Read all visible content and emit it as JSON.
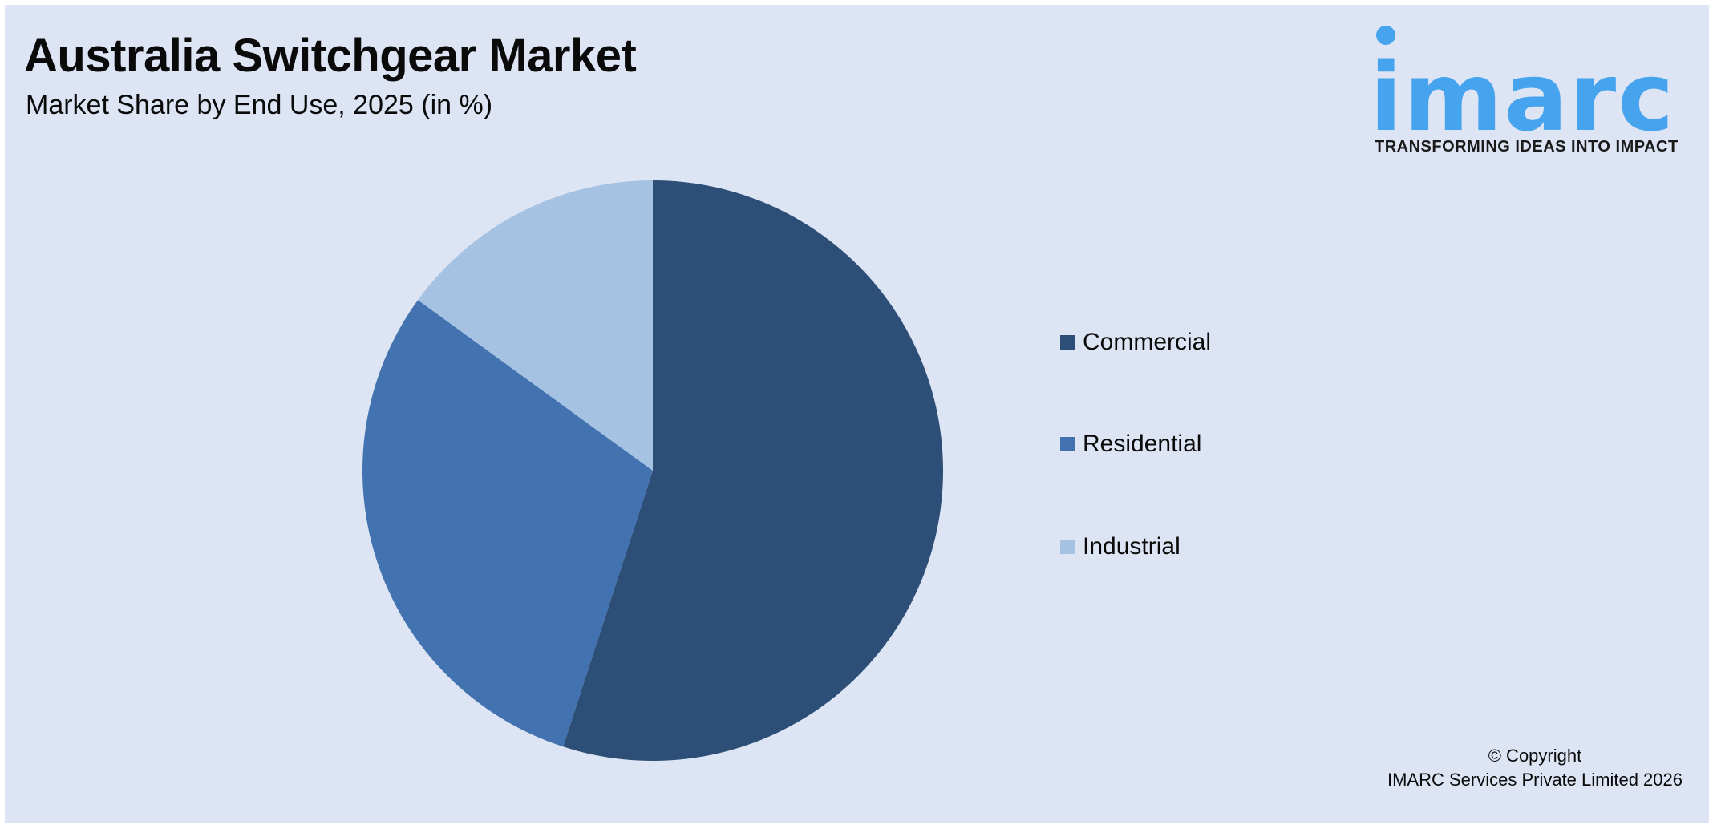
{
  "header": {
    "title": "Australia Switchgear Market",
    "subtitle": "Market Share by End Use, 2025 (in %)"
  },
  "logo": {
    "wordmark": "imarc",
    "tagline": "TRANSFORMING IDEAS INTO IMPACT",
    "color": "#46a3ee"
  },
  "footer": {
    "copyright_line1": "© Copyright",
    "copyright_line2": "IMARC Services Private Limited 2026"
  },
  "chart_data": {
    "type": "pie",
    "title": "Australia Switchgear Market",
    "subtitle": "Market Share by End Use, 2025 (in %)",
    "categories": [
      "Commercial",
      "Residential",
      "Industrial"
    ],
    "values": [
      55,
      30,
      15
    ],
    "colors": [
      "#2c4e77",
      "#4272b0",
      "#a6c2e2"
    ],
    "start_angle": "12 o'clock",
    "direction": "clockwise",
    "data_labels_shown": false,
    "legend_position": "right"
  },
  "legend": {
    "items": [
      {
        "label": "Commercial",
        "color": "#2c4e77"
      },
      {
        "label": "Residential",
        "color": "#4272b0"
      },
      {
        "label": "Industrial",
        "color": "#a6c2e2"
      }
    ]
  }
}
